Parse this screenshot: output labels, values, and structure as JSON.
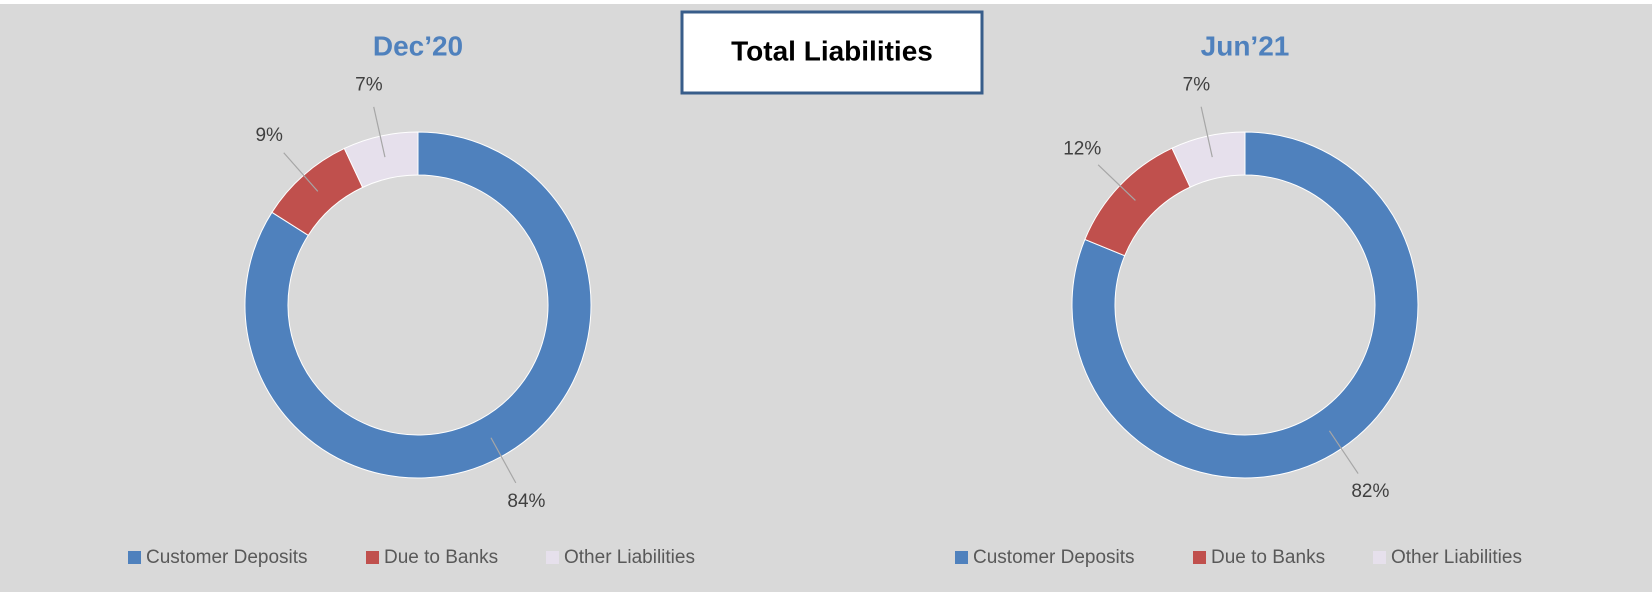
{
  "title": "Total Liabilities",
  "chart_data": [
    {
      "type": "donut",
      "title": "Dec’20",
      "categories": [
        "Customer Deposits",
        "Due to Banks",
        "Other Liabilities"
      ],
      "values": [
        84,
        9,
        7
      ],
      "value_labels": [
        "84%",
        "9%",
        "7%"
      ],
      "colors": [
        "#4f81bd",
        "#c0504d",
        "#e6e0ec"
      ],
      "legend": "bottom"
    },
    {
      "type": "donut",
      "title": "Jun’21",
      "categories": [
        "Customer Deposits",
        "Due to Banks",
        "Other Liabilities"
      ],
      "values": [
        82,
        12,
        7
      ],
      "value_labels": [
        "82%",
        "12%",
        "7%"
      ],
      "colors": [
        "#4f81bd",
        "#c0504d",
        "#e6e0ec"
      ],
      "legend": "bottom"
    }
  ]
}
